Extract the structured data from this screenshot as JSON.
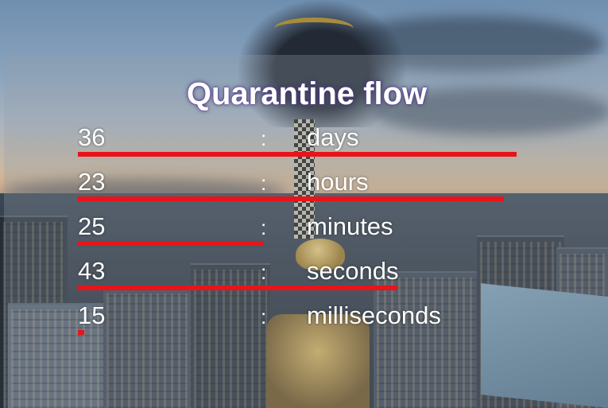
{
  "title": "Quarantine flow",
  "separator": ":",
  "bar_color": "#e8141a",
  "rows": [
    {
      "value": "36",
      "unit": "days",
      "progress": 0.985
    },
    {
      "value": "23",
      "unit": "hours",
      "progress": 0.958
    },
    {
      "value": "25",
      "unit": "minutes",
      "progress": 0.417
    },
    {
      "value": "43",
      "unit": "seconds",
      "progress": 0.717
    },
    {
      "value": "15",
      "unit": "milliseconds",
      "progress": 0.015
    }
  ]
}
